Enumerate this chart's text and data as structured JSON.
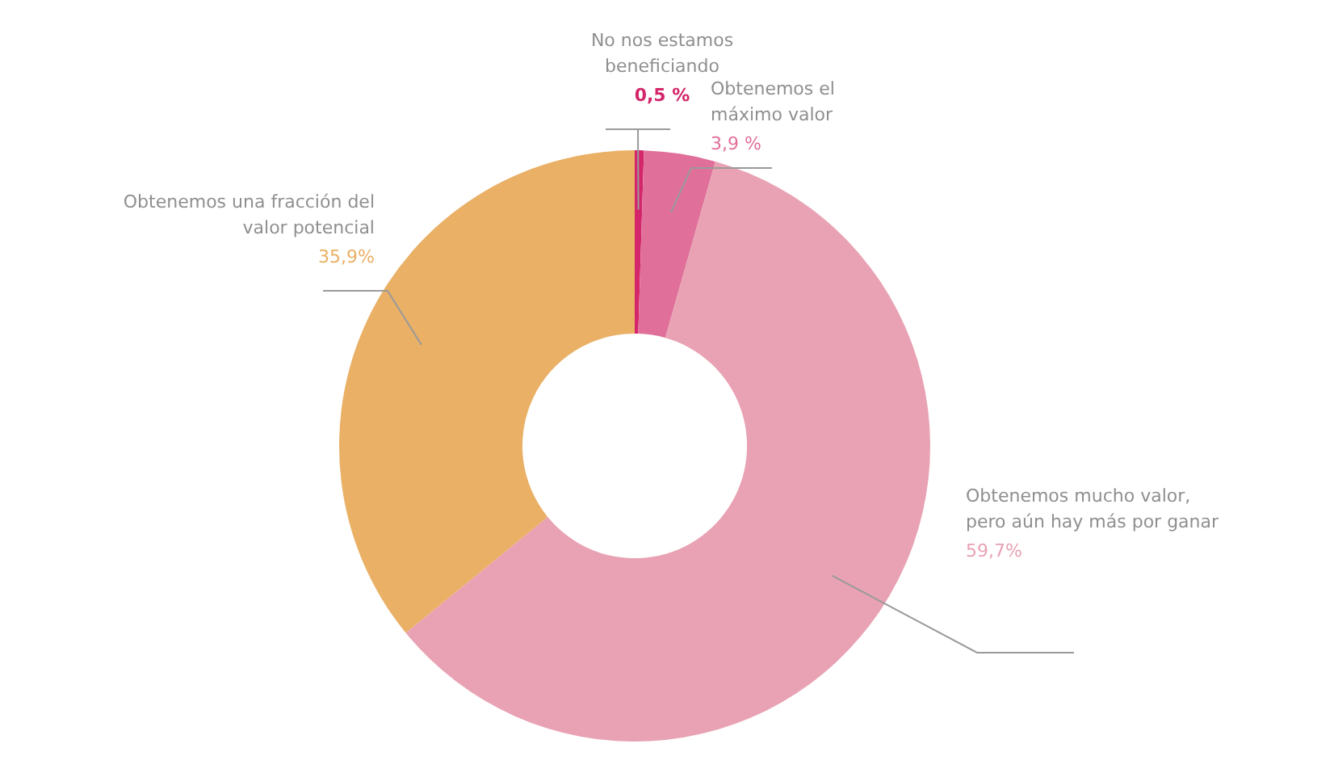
{
  "chart_data": {
    "type": "donut",
    "categories": [
      "No nos estamos beneficiando",
      "Obtenemos el máximo valor",
      "Obtenemos mucho valor, pero aún hay más por ganar",
      "Obtenemos una fracción del valor potencial"
    ],
    "values": [
      0.5,
      3.9,
      59.7,
      35.9
    ],
    "colors": [
      "#d4266a",
      "#e0709a",
      "#e8a2b3",
      "#e9b066"
    ],
    "value_labels": [
      "0,5 %",
      "3,9 %",
      "59,7%",
      "35,9%"
    ],
    "legend": false
  }
}
